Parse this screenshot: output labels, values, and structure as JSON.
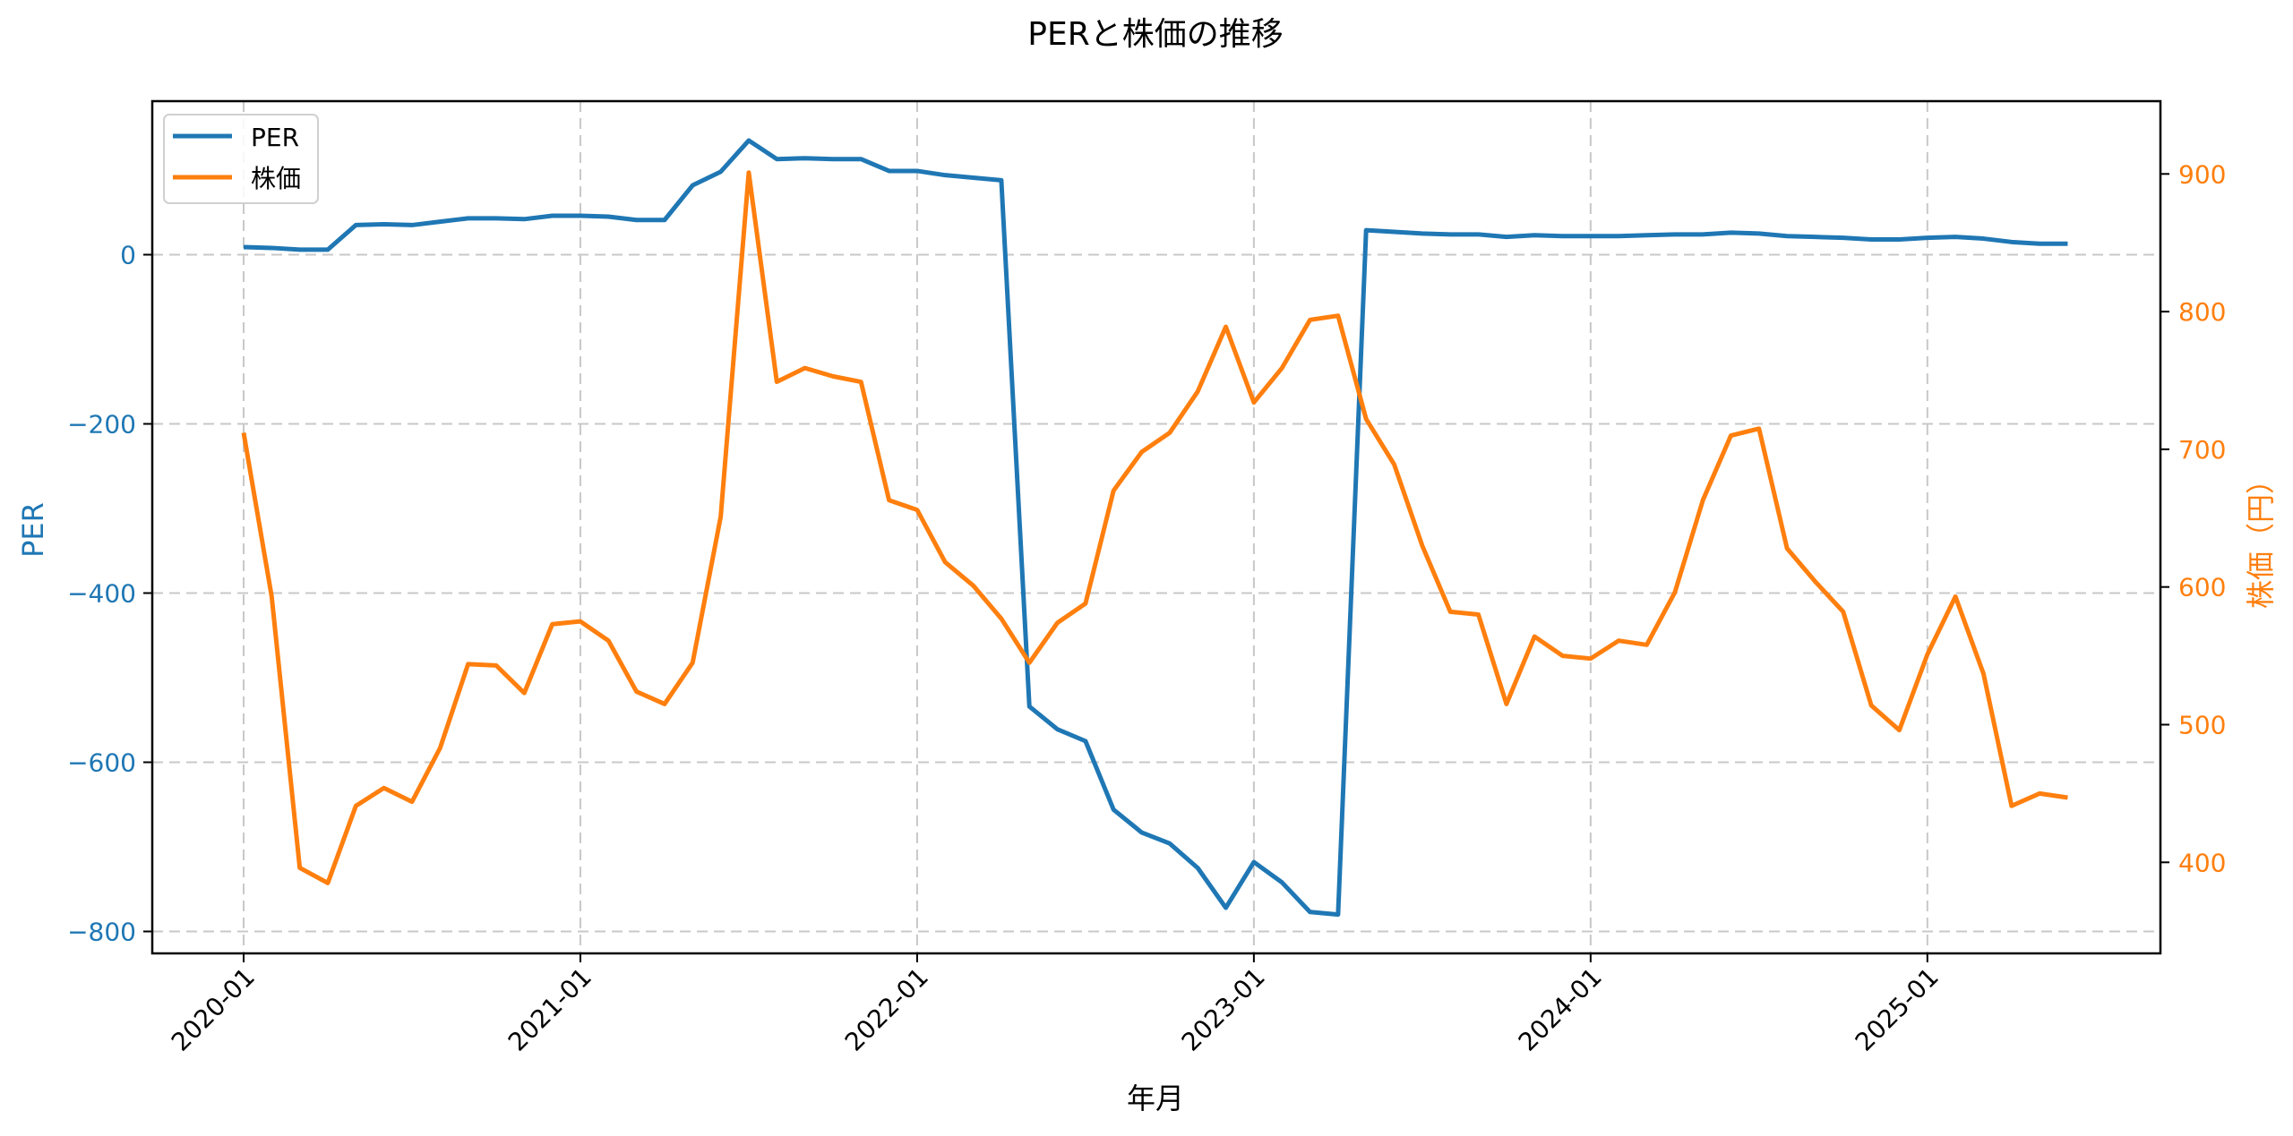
{
  "colors": {
    "per": "#1f77b4",
    "price": "#ff7f0e",
    "grid": "#c8c8c8",
    "axis": "#000000"
  },
  "chart_data": {
    "type": "line",
    "title": "PERと株価の推移",
    "xlabel": "年月",
    "ylabel": "PER",
    "ylabel_right": "株価（円）",
    "grid": true,
    "legend_position": "upper left",
    "legend": [
      "PER",
      "株価"
    ],
    "ylim": [
      -830,
      180
    ],
    "ylim_right": [
      332,
      950
    ],
    "yticks": [
      0,
      -200,
      -400,
      -600,
      -800
    ],
    "yticks_right": [
      900,
      800,
      700,
      600,
      500,
      400
    ],
    "xticks": [
      "2020-01",
      "2021-01",
      "2022-01",
      "2023-01",
      "2024-01",
      "2025-01"
    ],
    "x": [
      "2020-01",
      "2020-02",
      "2020-03",
      "2020-04",
      "2020-05",
      "2020-06",
      "2020-07",
      "2020-08",
      "2020-09",
      "2020-10",
      "2020-11",
      "2020-12",
      "2021-01",
      "2021-02",
      "2021-03",
      "2021-04",
      "2021-05",
      "2021-06",
      "2021-07",
      "2021-08",
      "2021-09",
      "2021-10",
      "2021-11",
      "2021-12",
      "2022-01",
      "2022-02",
      "2022-03",
      "2022-04",
      "2022-05",
      "2022-06",
      "2022-07",
      "2022-08",
      "2022-09",
      "2022-10",
      "2022-11",
      "2022-12",
      "2023-01",
      "2023-02",
      "2023-03",
      "2023-04",
      "2023-05",
      "2023-06",
      "2023-07",
      "2023-08",
      "2023-09",
      "2023-10",
      "2023-11",
      "2023-12",
      "2024-01",
      "2024-02",
      "2024-03",
      "2024-04",
      "2024-05",
      "2024-06",
      "2024-07",
      "2024-08",
      "2024-09",
      "2024-10",
      "2024-11",
      "2024-12",
      "2025-01",
      "2025-02",
      "2025-03",
      "2025-04",
      "2025-05",
      "2025-06"
    ],
    "series": [
      {
        "name": "PER",
        "axis": "left",
        "values": [
          9,
          8,
          6,
          6,
          35,
          36,
          35,
          39,
          43,
          43,
          42,
          46,
          46,
          45,
          41,
          41,
          82,
          98,
          135,
          113,
          114,
          113,
          113,
          99,
          99,
          94,
          91,
          88,
          -534,
          -561,
          -575,
          -656,
          -683,
          -696,
          -725,
          -772,
          -718,
          -742,
          -777,
          -780,
          29,
          27,
          25,
          24,
          24,
          21,
          23,
          22,
          22,
          22,
          23,
          24,
          24,
          26,
          25,
          22,
          21,
          20,
          18,
          18,
          20,
          21,
          19,
          15,
          13,
          13
        ]
      },
      {
        "name": "株価",
        "axis": "right",
        "values": [
          712,
          593,
          396,
          385,
          441,
          454,
          444,
          483,
          544,
          543,
          523,
          573,
          575,
          561,
          524,
          515,
          545,
          651,
          901,
          749,
          759,
          753,
          749,
          663,
          656,
          618,
          601,
          577,
          545,
          574,
          588,
          670,
          698,
          712,
          742,
          789,
          734,
          759,
          794,
          797,
          722,
          689,
          630,
          582,
          580,
          515,
          564,
          550,
          548,
          561,
          558,
          596,
          663,
          710,
          715,
          628,
          604,
          582,
          514,
          496,
          551,
          593,
          537,
          441,
          450,
          447
        ]
      }
    ]
  }
}
